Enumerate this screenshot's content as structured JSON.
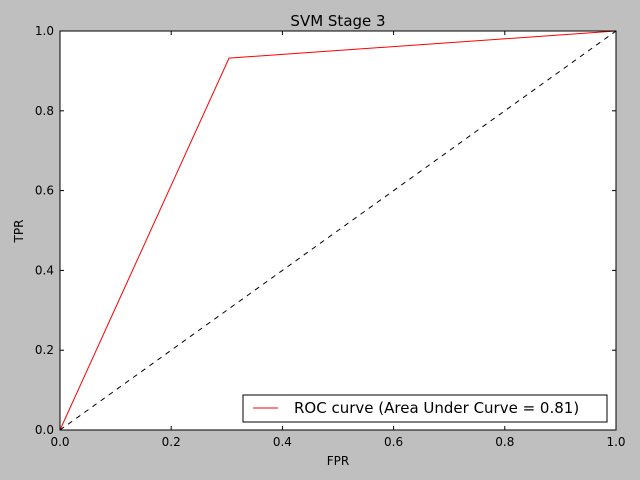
{
  "chart_data": {
    "type": "line",
    "title": "SVM Stage 3",
    "xlabel": "FPR",
    "ylabel": "TPR",
    "xlim": [
      0.0,
      1.0
    ],
    "ylim": [
      0.0,
      1.0
    ],
    "xticks": [
      "0.0",
      "0.2",
      "0.4",
      "0.6",
      "0.8",
      "1.0"
    ],
    "yticks": [
      "0.0",
      "0.2",
      "0.4",
      "0.6",
      "0.8",
      "1.0"
    ],
    "grid": false,
    "legend_position": "lower-right",
    "series": [
      {
        "name": "ROC curve (Area Under Curve = 0.81)",
        "color": "#ff0000",
        "style": "solid",
        "x": [
          0.0,
          0.304,
          1.0
        ],
        "y": [
          0.0,
          0.932,
          1.0
        ]
      },
      {
        "color": "#000000",
        "style": "dashed",
        "x": [
          0.0,
          1.0
        ],
        "y": [
          0.0,
          1.0
        ]
      }
    ]
  }
}
